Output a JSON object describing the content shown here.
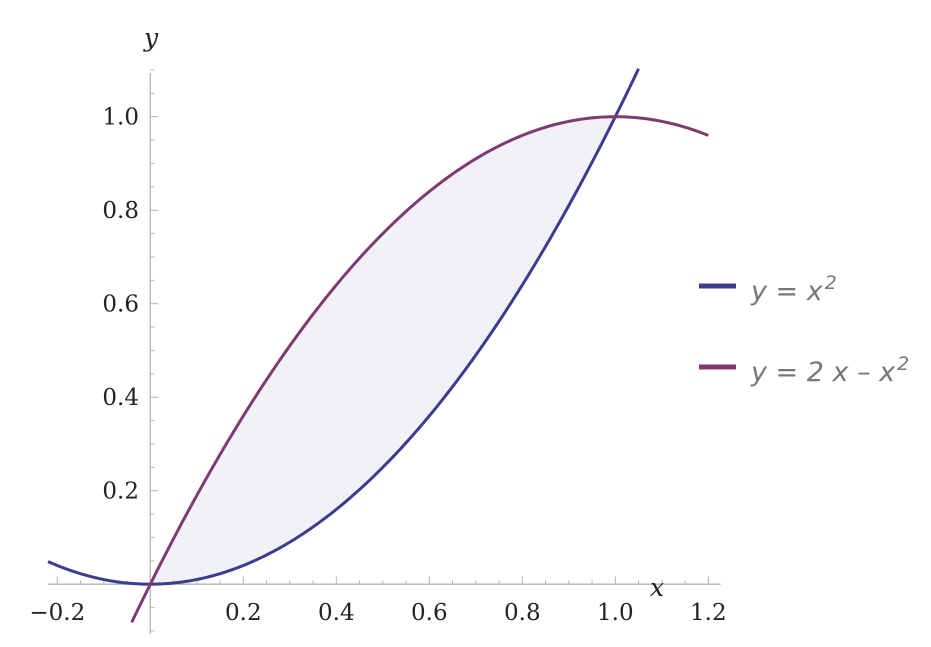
{
  "chart_data": {
    "type": "line",
    "title": "",
    "xlabel": "x",
    "ylabel": "y",
    "xlim": [
      -0.22,
      1.22
    ],
    "ylim": [
      -0.1,
      1.1
    ],
    "x_ticks": [
      {
        "value": -0.2,
        "label": "−0.2"
      },
      {
        "value": 0.2,
        "label": "0.2"
      },
      {
        "value": 0.4,
        "label": "0.4"
      },
      {
        "value": 0.6,
        "label": "0.6"
      },
      {
        "value": 0.8,
        "label": "0.8"
      },
      {
        "value": 1.0,
        "label": "1.0"
      },
      {
        "value": 1.2,
        "label": "1.2"
      }
    ],
    "y_ticks": [
      {
        "value": 0.2,
        "label": "0.2"
      },
      {
        "value": 0.4,
        "label": "0.4"
      },
      {
        "value": 0.6,
        "label": "0.6"
      },
      {
        "value": 0.8,
        "label": "0.8"
      },
      {
        "value": 1.0,
        "label": "1.0"
      }
    ],
    "grid": false,
    "legend_position": "right",
    "series": [
      {
        "name": "y = x^2",
        "legend_main": "y = x",
        "legend_sup": "2",
        "color": "#3d3b8e",
        "x": [
          -0.22,
          -0.2,
          -0.1,
          0.0,
          0.1,
          0.2,
          0.3,
          0.4,
          0.5,
          0.6,
          0.7,
          0.8,
          0.9,
          1.0,
          1.05
        ],
        "y": [
          0.0484,
          0.04,
          0.01,
          0.0,
          0.01,
          0.04,
          0.09,
          0.16,
          0.25,
          0.36,
          0.49,
          0.64,
          0.81,
          1.0,
          1.1025
        ]
      },
      {
        "name": "y = 2 x − x^2",
        "legend_main": "y = 2 x – x",
        "legend_sup": "2",
        "color": "#7e3b72",
        "x": [
          -0.04,
          0.0,
          0.1,
          0.2,
          0.3,
          0.4,
          0.5,
          0.6,
          0.7,
          0.8,
          0.9,
          1.0,
          1.1,
          1.2
        ],
        "y": [
          -0.0816,
          0.0,
          0.19,
          0.36,
          0.51,
          0.64,
          0.75,
          0.84,
          0.91,
          0.96,
          0.99,
          1.0,
          0.99,
          0.96
        ]
      }
    ],
    "fill_between": {
      "from": 0.0,
      "to": 1.0,
      "color": "#f1f1f8"
    },
    "axis_color": "#b3b3b3"
  }
}
